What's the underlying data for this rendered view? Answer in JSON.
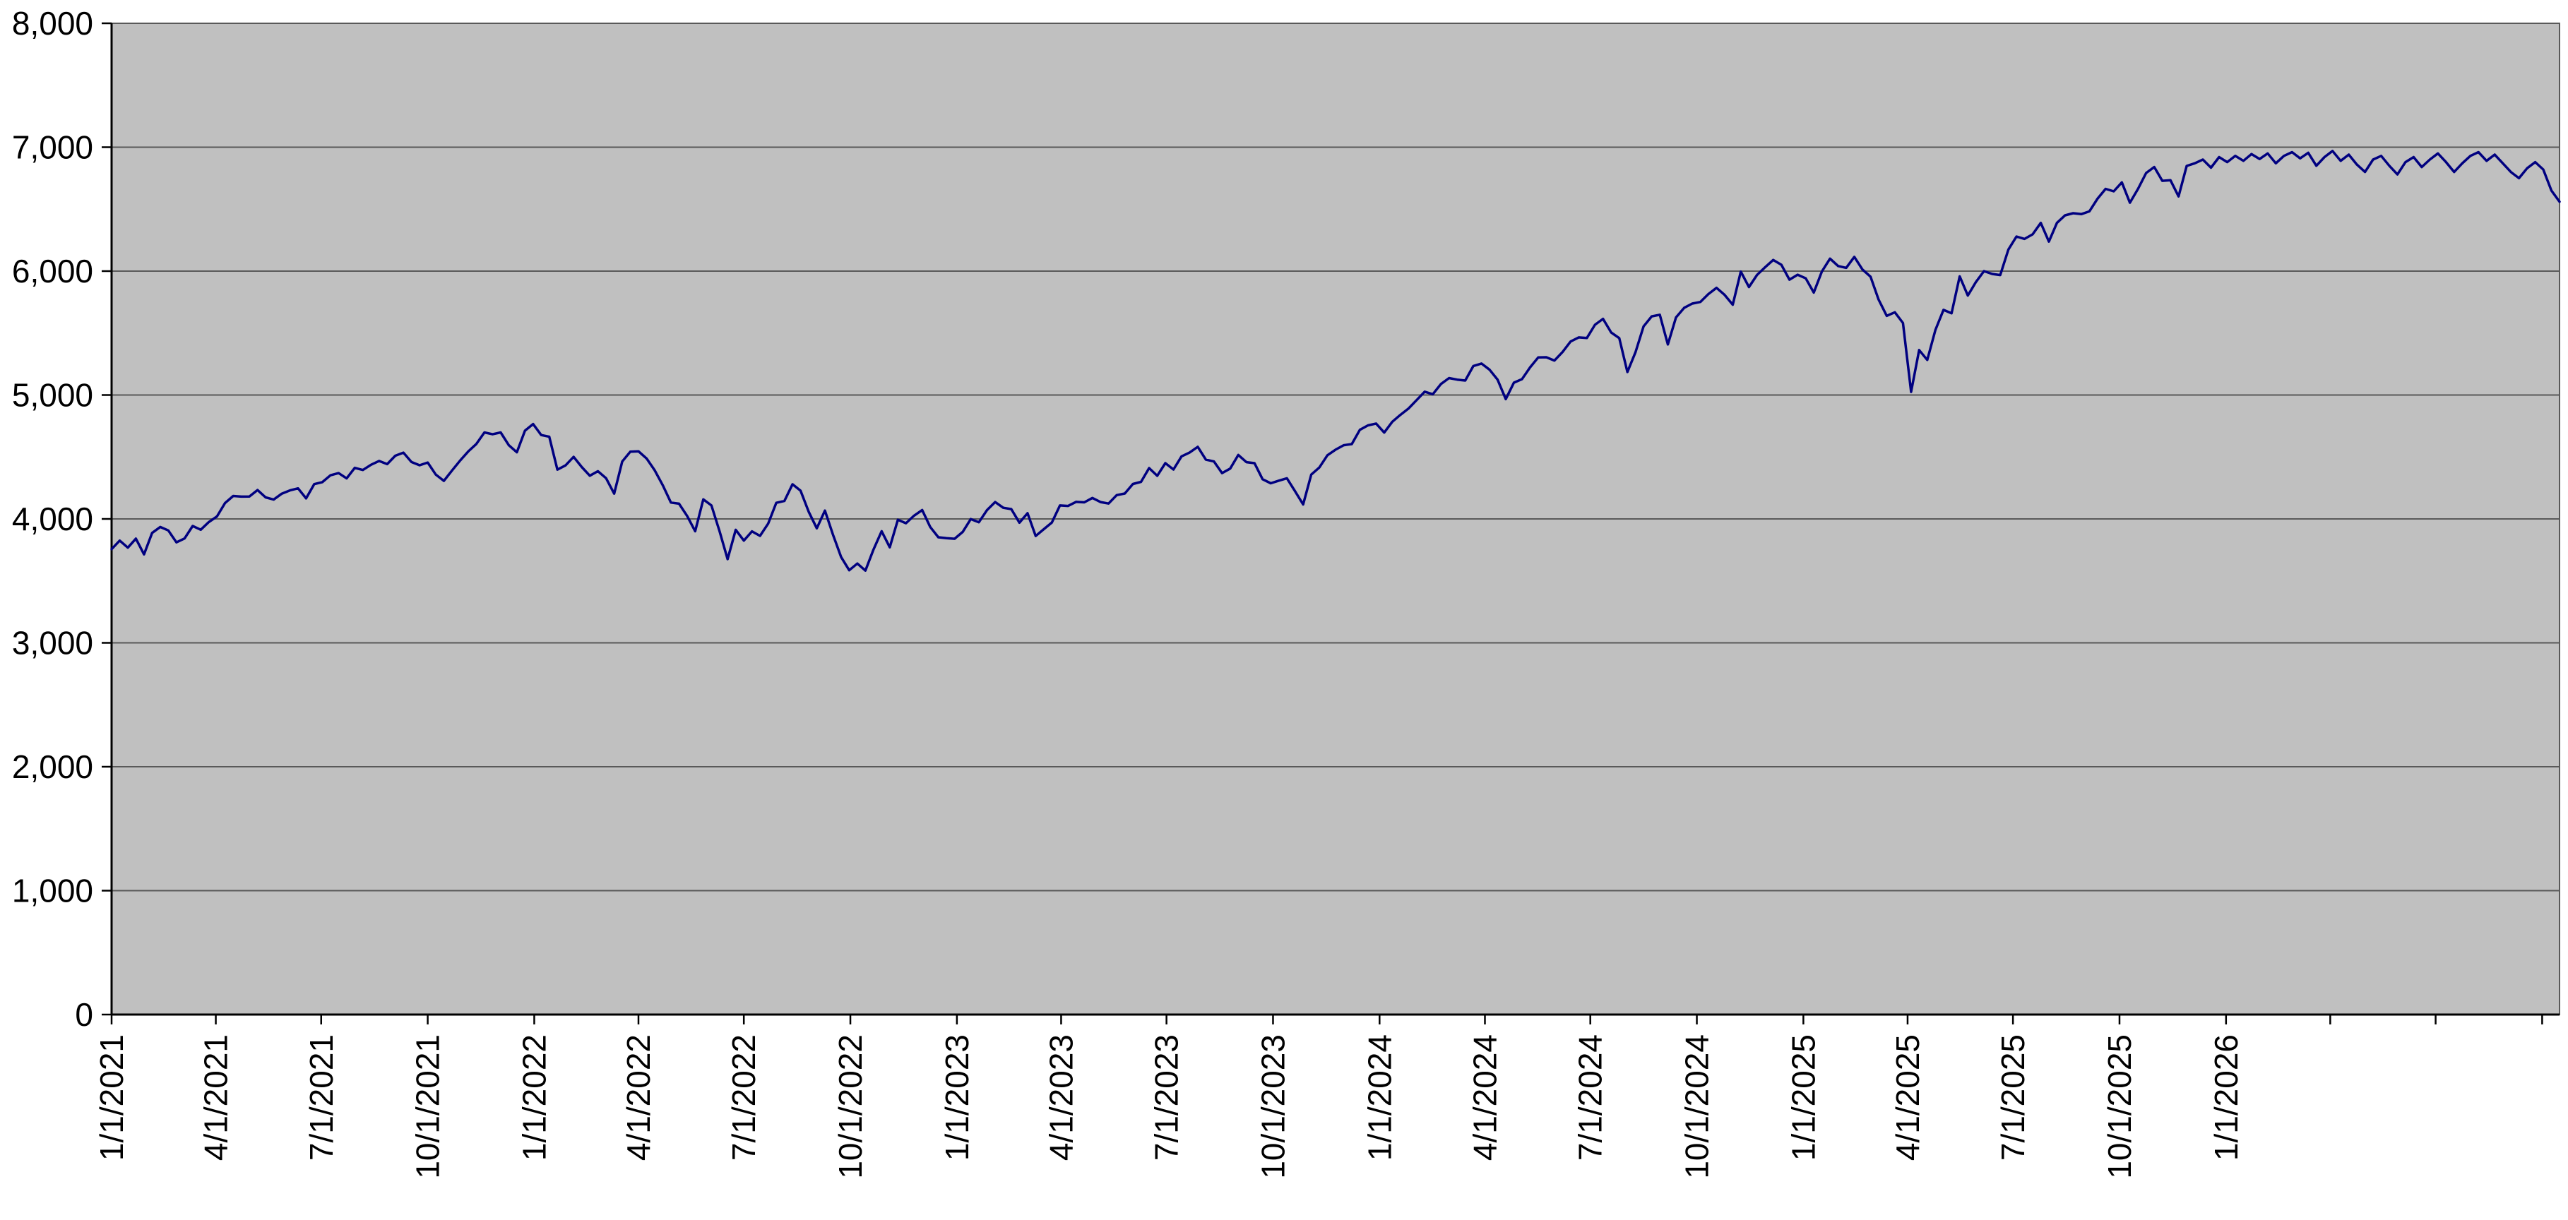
{
  "chart_data": {
    "type": "line",
    "title": "",
    "xlabel": "",
    "ylabel": "",
    "legend": "none",
    "grid": "horizontal-major",
    "ylim": [
      0,
      8000
    ],
    "y_major_unit": 1000,
    "x_start_date": "1/1/2021",
    "x_interval_days": 7,
    "x_tick_labels": [
      "1/1/2021",
      "4/1/2021",
      "7/1/2021",
      "10/1/2021",
      "1/1/2022",
      "4/1/2022",
      "7/1/2022",
      "10/1/2022",
      "1/1/2023",
      "4/1/2023",
      "7/1/2023",
      "10/1/2023",
      "1/1/2024",
      "4/1/2024",
      "7/1/2024",
      "10/1/2024",
      "1/1/2025",
      "4/1/2025",
      "7/1/2025",
      "10/1/2025",
      "1/1/2026"
    ],
    "x_unlabeled_tick_dates": [
      "4/1/2026",
      "7/1/2026",
      "10/1/2026"
    ],
    "y_ticks": [
      {
        "v": 8000,
        "label": "8,000"
      },
      {
        "v": 7000,
        "label": "7,000"
      },
      {
        "v": 6000,
        "label": "6,000"
      },
      {
        "v": 5000,
        "label": "5,000"
      },
      {
        "v": 4000,
        "label": "4,000"
      },
      {
        "v": 3000,
        "label": "3,000"
      },
      {
        "v": 2000,
        "label": "2,000"
      },
      {
        "v": 1000,
        "label": "1,000"
      },
      {
        "v": 0,
        "label": "0"
      }
    ],
    "colors": {
      "line": "#000080",
      "plot_bg": "#c0c0c0",
      "gridline": "#595959",
      "border": "#595959",
      "axis": "#000000",
      "text": "#000000",
      "page_bg": "#ffffff"
    },
    "values": [
      3756,
      3825,
      3768,
      3841,
      3714,
      3887,
      3935,
      3907,
      3811,
      3842,
      3943,
      3913,
      3975,
      4020,
      4129,
      4185,
      4180,
      4181,
      4233,
      4174,
      4156,
      4204,
      4230,
      4247,
      4166,
      4281,
      4297,
      4352,
      4370,
      4327,
      4412,
      4395,
      4437,
      4468,
      4442,
      4510,
      4535,
      4459,
      4433,
      4455,
      4357,
      4307,
      4391,
      4471,
      4545,
      4605,
      4698,
      4683,
      4698,
      4595,
      4538,
      4712,
      4766,
      4677,
      4663,
      4398,
      4432,
      4501,
      4419,
      4349,
      4385,
      4329,
      4204,
      4463,
      4543,
      4546,
      4488,
      4393,
      4272,
      4132,
      4123,
      4024,
      3901,
      4158,
      4109,
      3901,
      3675,
      3912,
      3825,
      3900,
      3863,
      3962,
      4130,
      4145,
      4280,
      4228,
      4058,
      3924,
      4067,
      3873,
      3693,
      3586,
      3640,
      3583,
      3753,
      3901,
      3771,
      3993,
      3965,
      4026,
      4072,
      3934,
      3852,
      3845,
      3840,
      3895,
      3999,
      3973,
      4071,
      4136,
      4090,
      4079,
      3970,
      4046,
      3862,
      3917,
      3971,
      4109,
      4105,
      4138,
      4134,
      4169,
      4136,
      4124,
      4192,
      4205,
      4282,
      4299,
      4410,
      4348,
      4450,
      4399,
      4505,
      4536,
      4582,
      4478,
      4464,
      4370,
      4406,
      4516,
      4458,
      4450,
      4320,
      4288,
      4309,
      4328,
      4224,
      4117,
      4358,
      4415,
      4514,
      4559,
      4595,
      4604,
      4719,
      4755,
      4770,
      4697,
      4784,
      4840,
      4891,
      4959,
      5027,
      5006,
      5089,
      5137,
      5124,
      5117,
      5234,
      5254,
      5204,
      5123,
      4967,
      5100,
      5128,
      5223,
      5303,
      5305,
      5278,
      5347,
      5432,
      5465,
      5460,
      5567,
      5615,
      5505,
      5459,
      5186,
      5344,
      5554,
      5635,
      5648,
      5408,
      5626,
      5703,
      5738,
      5751,
      5815,
      5865,
      5808,
      5729,
      5996,
      5871,
      5969,
      6032,
      6090,
      6051,
      5931,
      5971,
      5942,
      5827,
      5997,
      6101,
      6041,
      6026,
      6115,
      6013,
      5955,
      5770,
      5639,
      5668,
      5581,
      5025,
      5363,
      5283,
      5525,
      5687,
      5660,
      5958,
      5803,
      5912,
      6000,
      5977,
      5968,
      6173,
      6279,
      6260,
      6297,
      6389,
      6238,
      6389,
      6450,
      6467,
      6460,
      6482,
      6584,
      6664,
      6644,
      6716,
      6552,
      6664,
      6792,
      6840,
      6729,
      6734,
      6603,
      6849,
      6870,
      6900,
      6835,
      6920,
      6880,
      6930,
      6890,
      6945,
      6905,
      6950,
      6870,
      6930,
      6960,
      6910,
      6955,
      6850,
      6920,
      6970,
      6890,
      6940,
      6860,
      6800,
      6900,
      6930,
      6850,
      6780,
      6880,
      6920,
      6840,
      6900,
      6950,
      6880,
      6800,
      6870,
      6930,
      6960,
      6890,
      6940,
      6870,
      6800,
      6750,
      6830,
      6880,
      6820,
      6650,
      6560
    ]
  }
}
